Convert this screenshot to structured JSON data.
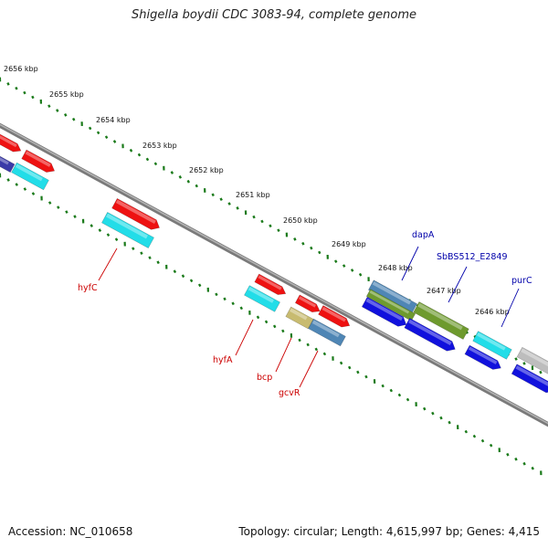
{
  "title": "Shigella boydii CDC 3083-94, complete genome",
  "footer": {
    "accession": "Accession: NC_010658",
    "summary": "Topology: circular; Length: 4,615,997 bp; Genes: 4,415"
  },
  "colors": {
    "tick": "#1a7a1a",
    "backbone": "#7a7a7a",
    "red_gene": "#ee1111",
    "cyan_gene": "#22dde8",
    "blue_gene": "#1111dd",
    "olive_gene": "#6e9a2e",
    "steel_gene": "#4f86b5",
    "tan_gene": "#c8bb70",
    "grey_gene": "#bdbdbd",
    "label_red": "#cc0000",
    "label_blue": "#0000aa"
  },
  "ticks": [
    {
      "label": "2656 kbp"
    },
    {
      "label": "2655 kbp"
    },
    {
      "label": "2654 kbp"
    },
    {
      "label": "2653 kbp"
    },
    {
      "label": "2652 kbp"
    },
    {
      "label": "2651 kbp"
    },
    {
      "label": "2650 kbp"
    },
    {
      "label": "2649 kbp"
    },
    {
      "label": "2648 kbp"
    },
    {
      "label": "2647 kbp"
    },
    {
      "label": "2646 kbp"
    }
  ],
  "gene_labels": [
    {
      "name": "hyfC",
      "color": "label_red"
    },
    {
      "name": "hyfA",
      "color": "label_red"
    },
    {
      "name": "bcp",
      "color": "label_red"
    },
    {
      "name": "gcvR",
      "color": "label_red"
    },
    {
      "name": "dapA",
      "color": "label_blue"
    },
    {
      "name": "SbBS512_E2849",
      "color": "label_blue"
    },
    {
      "name": "purC",
      "color": "label_blue"
    }
  ]
}
